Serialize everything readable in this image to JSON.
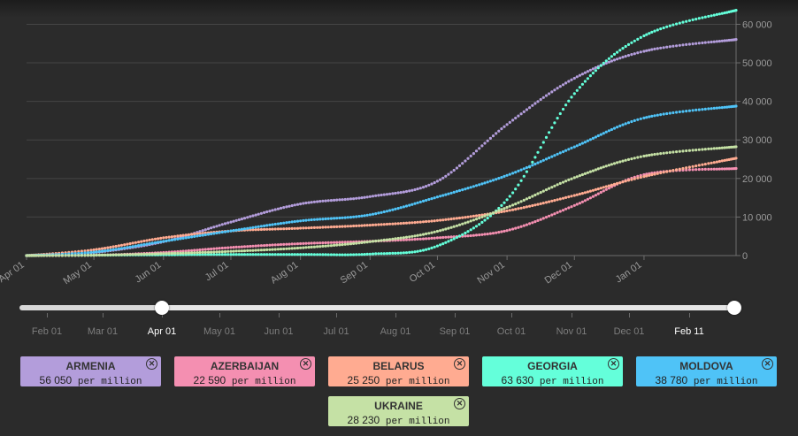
{
  "chart_data": {
    "type": "line",
    "x_axis_labels": [
      "Apr 01",
      "May 01",
      "Jun 01",
      "Jul 01",
      "Aug 01",
      "Sep 01",
      "Oct 01",
      "Nov 01",
      "Dec 01",
      "Jan 01"
    ],
    "y_axis": {
      "ticks": [
        "0",
        "10 000",
        "20 000",
        "30 000",
        "40 000",
        "50 000",
        "60 000"
      ],
      "ylim": [
        0,
        64000
      ]
    },
    "x_range": [
      "Apr 01",
      "Feb 11"
    ],
    "grid": true,
    "series": [
      {
        "name": "ARMENIA",
        "color": "#b39ddb",
        "points": [
          [
            "Apr 01",
            0
          ],
          [
            "May 01",
            800
          ],
          [
            "Jun 01",
            3600
          ],
          [
            "Jul 01",
            8700
          ],
          [
            "Aug 01",
            13400
          ],
          [
            "Sep 01",
            15300
          ],
          [
            "Oct 01",
            19300
          ],
          [
            "Nov 01",
            34000
          ],
          [
            "Dec 01",
            46000
          ],
          [
            "Jan 01",
            53000
          ],
          [
            "Feb 11",
            56050
          ]
        ]
      },
      {
        "name": "AZERBAIJAN",
        "color": "#f48fb1",
        "points": [
          [
            "Apr 01",
            0
          ],
          [
            "May 01",
            100
          ],
          [
            "Jun 01",
            800
          ],
          [
            "Jul 01",
            2100
          ],
          [
            "Aug 01",
            3100
          ],
          [
            "Sep 01",
            3700
          ],
          [
            "Oct 01",
            4600
          ],
          [
            "Nov 01",
            6500
          ],
          [
            "Dec 01",
            13000
          ],
          [
            "Jan 01",
            21000
          ],
          [
            "Feb 11",
            22590
          ]
        ]
      },
      {
        "name": "BELARUS",
        "color": "#ffab91",
        "points": [
          [
            "Apr 01",
            0
          ],
          [
            "May 01",
            1500
          ],
          [
            "Jun 01",
            4600
          ],
          [
            "Jul 01",
            6400
          ],
          [
            "Aug 01",
            7100
          ],
          [
            "Sep 01",
            7900
          ],
          [
            "Oct 01",
            9100
          ],
          [
            "Nov 01",
            11600
          ],
          [
            "Dec 01",
            15600
          ],
          [
            "Jan 01",
            20500
          ],
          [
            "Feb 11",
            25250
          ]
        ]
      },
      {
        "name": "GEORGIA",
        "color": "#64ffda",
        "points": [
          [
            "Apr 01",
            0
          ],
          [
            "May 01",
            100
          ],
          [
            "Jun 01",
            200
          ],
          [
            "Jul 01",
            300
          ],
          [
            "Aug 01",
            300
          ],
          [
            "Sep 01",
            400
          ],
          [
            "Oct 01",
            2500
          ],
          [
            "Nov 01",
            14500
          ],
          [
            "Dec 01",
            42000
          ],
          [
            "Jan 01",
            57000
          ],
          [
            "Feb 11",
            63630
          ]
        ]
      },
      {
        "name": "MOLDOVA",
        "color": "#4fc3f7",
        "points": [
          [
            "Apr 01",
            0
          ],
          [
            "May 01",
            900
          ],
          [
            "Jun 01",
            3700
          ],
          [
            "Jul 01",
            6400
          ],
          [
            "Aug 01",
            9000
          ],
          [
            "Sep 01",
            10600
          ],
          [
            "Oct 01",
            15200
          ],
          [
            "Nov 01",
            20800
          ],
          [
            "Dec 01",
            28200
          ],
          [
            "Jan 01",
            35700
          ],
          [
            "Feb 11",
            38780
          ]
        ]
      },
      {
        "name": "UKRAINE",
        "color": "#c5e1a5",
        "points": [
          [
            "Apr 01",
            0
          ],
          [
            "May 01",
            100
          ],
          [
            "Jun 01",
            500
          ],
          [
            "Jul 01",
            1100
          ],
          [
            "Aug 01",
            2000
          ],
          [
            "Sep 01",
            3600
          ],
          [
            "Oct 01",
            6300
          ],
          [
            "Nov 01",
            12500
          ],
          [
            "Dec 01",
            20200
          ],
          [
            "Jan 01",
            25800
          ],
          [
            "Feb 11",
            28230
          ]
        ]
      }
    ]
  },
  "slider": {
    "labels": [
      "Feb 01",
      "Mar 01",
      "Apr 01",
      "May 01",
      "Jun 01",
      "Jul 01",
      "Aug 01",
      "Sep 01",
      "Oct 01",
      "Nov 01",
      "Dec 01",
      "Feb 11"
    ],
    "start_label": "Apr 01",
    "end_label": "Feb 11"
  },
  "legend": {
    "unit": "per million",
    "cards": [
      {
        "name": "ARMENIA",
        "value": "56 050",
        "color": "#b39ddb"
      },
      {
        "name": "AZERBAIJAN",
        "value": "22 590",
        "color": "#f48fb1"
      },
      {
        "name": "BELARUS",
        "value": "25 250",
        "color": "#ffab91"
      },
      {
        "name": "GEORGIA",
        "value": "63 630",
        "color": "#64ffda"
      },
      {
        "name": "MOLDOVA",
        "value": "38 780",
        "color": "#4fc3f7"
      },
      {
        "name": "UKRAINE",
        "value": "28 230",
        "color": "#c5e1a5"
      }
    ]
  }
}
